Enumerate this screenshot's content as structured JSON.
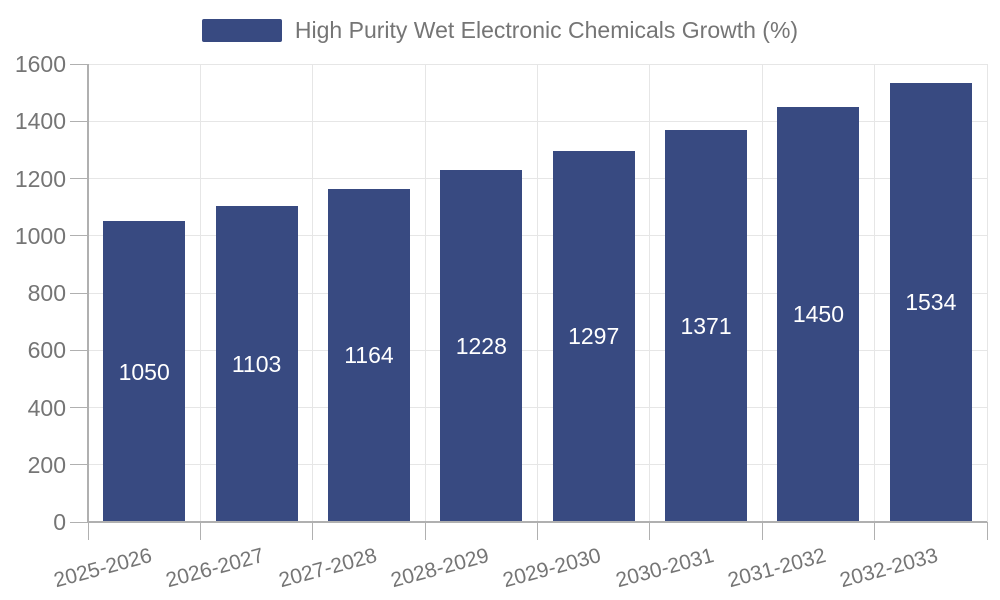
{
  "colors": {
    "bar": "#384a81",
    "bar_label": "#ffffff",
    "grid": "#e6e6e6",
    "axis": "#b0b0b0",
    "text": "#757575",
    "background": "#ffffff"
  },
  "chart_data": {
    "type": "bar",
    "title": "High Purity Wet Electronic Chemicals Growth (%)",
    "legend": {
      "position": "top-center",
      "label": "High Purity Wet Electronic Chemicals Growth (%)"
    },
    "categories": [
      "2025-2026",
      "2026-2027",
      "2027-2028",
      "2028-2029",
      "2029-2030",
      "2030-2031",
      "2031-2032",
      "2032-2033"
    ],
    "series": [
      {
        "name": "High Purity Wet Electronic Chemicals Growth (%)",
        "values": [
          1050,
          1103,
          1164,
          1228,
          1297,
          1371,
          1450,
          1534
        ]
      }
    ],
    "ylim": [
      0,
      1600
    ],
    "yticks": [
      0,
      200,
      400,
      600,
      800,
      1000,
      1200,
      1400,
      1600
    ],
    "grid": true,
    "bar_value_labels": "inside-center",
    "x_label_rotation_deg": -15
  }
}
